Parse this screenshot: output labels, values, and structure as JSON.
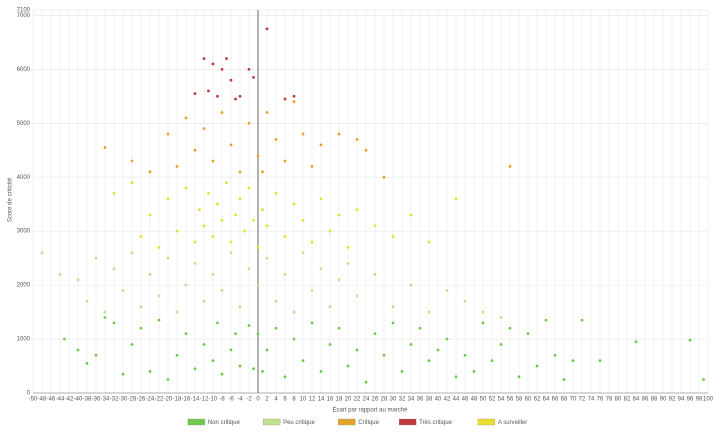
{
  "chart_data": {
    "type": "scatter",
    "xlabel": "Écart par rapport au marché",
    "ylabel": "Score de criticité",
    "xlim": [
      -50,
      100
    ],
    "ylim": [
      0,
      7100
    ],
    "xticks": [
      -50,
      -48,
      -46,
      -44,
      -42,
      -40,
      -38,
      -36,
      -34,
      -32,
      -30,
      -28,
      -26,
      -24,
      -22,
      -20,
      -18,
      -16,
      -14,
      -12,
      -10,
      -8,
      -6,
      -4,
      -2,
      0,
      2,
      4,
      6,
      8,
      10,
      12,
      14,
      16,
      18,
      20,
      22,
      24,
      26,
      28,
      30,
      32,
      34,
      36,
      38,
      40,
      42,
      44,
      46,
      48,
      50,
      52,
      54,
      56,
      58,
      60,
      62,
      64,
      66,
      68,
      70,
      72,
      74,
      76,
      78,
      80,
      82,
      84,
      86,
      88,
      90,
      92,
      94,
      96,
      98,
      100
    ],
    "yticks": [
      0,
      1000,
      2000,
      3000,
      4000,
      5000,
      6000,
      7000,
      7100
    ],
    "grid": true,
    "legend": "bottom",
    "series": [
      {
        "name": "Non critique",
        "color": "#6fc94a",
        "x": [
          -43,
          -40,
          -38,
          -36,
          -34,
          -32,
          -30,
          -28,
          -26,
          -24,
          -22,
          -20,
          -18,
          -16,
          -14,
          -12,
          -10,
          -9,
          -8,
          -6,
          -5,
          -4,
          -2,
          -1,
          0,
          1,
          2,
          4,
          6,
          8,
          10,
          12,
          14,
          16,
          18,
          20,
          22,
          24,
          26,
          28,
          30,
          32,
          34,
          36,
          38,
          40,
          42,
          44,
          46,
          48,
          50,
          52,
          54,
          56,
          58,
          60,
          62,
          64,
          66,
          68,
          70,
          72,
          76,
          84,
          96,
          99
        ],
        "values": [
          1000,
          800,
          550,
          700,
          1400,
          1300,
          350,
          900,
          1200,
          400,
          1350,
          250,
          700,
          1100,
          450,
          900,
          600,
          1300,
          350,
          800,
          1100,
          500,
          1250,
          450,
          1100,
          400,
          800,
          1200,
          300,
          1000,
          600,
          1300,
          400,
          900,
          1200,
          500,
          800,
          200,
          1100,
          700,
          1300,
          400,
          900,
          1200,
          600,
          800,
          1000,
          300,
          700,
          400,
          1300,
          600,
          900,
          1200,
          300,
          1100,
          500,
          1350,
          700,
          250,
          600,
          1350,
          600,
          950,
          980,
          250
        ]
      },
      {
        "name": "Peu critique",
        "color": "#c0df90",
        "x": [
          -48,
          -44,
          -40,
          -38,
          -36,
          -34,
          -32,
          -30,
          -28,
          -26,
          -24,
          -22,
          -20,
          -18,
          -16,
          -14,
          -12,
          -10,
          -8,
          -6,
          -4,
          -2,
          0,
          2,
          4,
          6,
          8,
          10,
          12,
          14,
          16,
          18,
          20,
          22,
          26,
          30,
          34,
          38,
          42,
          46,
          50,
          54
        ],
        "values": [
          2600,
          2200,
          2100,
          1700,
          2500,
          1500,
          2300,
          1900,
          2600,
          1600,
          2200,
          1800,
          2500,
          1500,
          2000,
          2400,
          1700,
          2200,
          1900,
          2600,
          1600,
          2300,
          2000,
          2500,
          1700,
          2200,
          1500,
          2600,
          1900,
          2300,
          1600,
          2100,
          2400,
          1800,
          2200,
          1600,
          2000,
          1500,
          1900,
          1700,
          1500,
          1400
        ]
      },
      {
        "name": "Critique",
        "color": "#e3a42b",
        "x": [
          -34,
          -28,
          -24,
          -20,
          -18,
          -16,
          -14,
          -12,
          -10,
          -8,
          -6,
          -4,
          -2,
          0,
          1,
          2,
          4,
          6,
          8,
          10,
          12,
          14,
          18,
          22,
          24,
          28,
          56
        ],
        "values": [
          4550,
          4300,
          4100,
          4800,
          4200,
          5100,
          4500,
          4900,
          4300,
          5200,
          4600,
          4100,
          5000,
          4400,
          4100,
          5200,
          4700,
          4300,
          5400,
          4800,
          4200,
          4600,
          4800,
          4700,
          4500,
          4000,
          4200
        ]
      },
      {
        "name": "Très critique",
        "color": "#c0393b",
        "x": [
          -14,
          -12,
          -11,
          -10,
          -9,
          -8,
          -7,
          -6,
          -5,
          -4,
          -2,
          -1,
          2,
          6,
          8
        ],
        "values": [
          5550,
          6200,
          5600,
          6100,
          5500,
          6000,
          6200,
          5800,
          5450,
          5500,
          6000,
          5850,
          6750,
          5450,
          5500
        ]
      },
      {
        "name": "A surveiller",
        "color": "#eadf2c",
        "x": [
          -32,
          -28,
          -26,
          -24,
          -22,
          -20,
          -18,
          -16,
          -14,
          -13,
          -12,
          -11,
          -10,
          -9,
          -8,
          -7,
          -6,
          -5,
          -4,
          -3,
          -2,
          -1,
          0,
          1,
          2,
          4,
          6,
          8,
          10,
          12,
          14,
          16,
          18,
          20,
          22,
          26,
          30,
          34,
          38,
          44
        ],
        "values": [
          3700,
          3900,
          2900,
          3300,
          2700,
          3600,
          3000,
          3800,
          2800,
          3400,
          3100,
          3700,
          2900,
          3500,
          3200,
          3900,
          2800,
          3300,
          3600,
          3000,
          3800,
          3200,
          2700,
          3400,
          3100,
          3700,
          2900,
          3500,
          3200,
          2800,
          3600,
          3000,
          3300,
          2700,
          3400,
          3100,
          2900,
          3300,
          2800,
          3600
        ]
      }
    ]
  }
}
